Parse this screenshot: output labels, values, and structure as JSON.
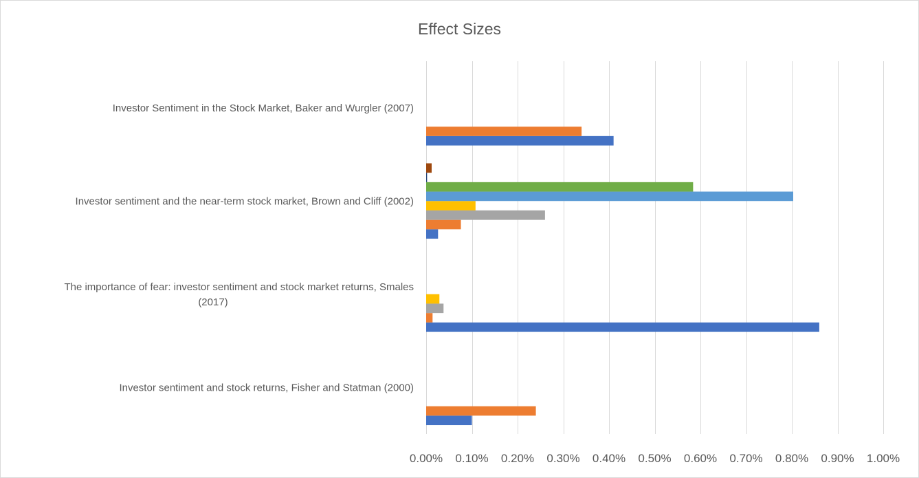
{
  "chart_data": {
    "type": "bar",
    "orientation": "horizontal",
    "title": "Effect Sizes",
    "xlabel": "",
    "ylabel": "",
    "xlim": [
      0,
      1.0
    ],
    "grid": true,
    "legend": "none",
    "x_ticks": [
      "0.00%",
      "0.10%",
      "0.20%",
      "0.30%",
      "0.40%",
      "0.50%",
      "0.60%",
      "0.70%",
      "0.80%",
      "0.90%",
      "1.00%"
    ],
    "x_tick_values": [
      0,
      0.1,
      0.2,
      0.3,
      0.4,
      0.5,
      0.6,
      0.7,
      0.8,
      0.9,
      1.0
    ],
    "categories": [
      {
        "label_lines": [
          "Investor Sentiment in the Stock Market, Baker and Wurgler (2007)"
        ],
        "bars": [
          {
            "value": 0.41,
            "color": "#4472c4"
          },
          {
            "value": 0.34,
            "color": "#ed7d31"
          }
        ]
      },
      {
        "label_lines": [
          "Investor sentiment and the near-term stock market, Brown and Cliff (2002)"
        ],
        "bars": [
          {
            "value": 0.026,
            "color": "#4472c4"
          },
          {
            "value": 0.076,
            "color": "#ed7d31"
          },
          {
            "value": 0.26,
            "color": "#a5a5a5"
          },
          {
            "value": 0.108,
            "color": "#ffc000"
          },
          {
            "value": 0.803,
            "color": "#5b9bd5"
          },
          {
            "value": 0.584,
            "color": "#70ad47"
          },
          {
            "value": 0.002,
            "color": "#264478"
          },
          {
            "value": 0.012,
            "color": "#9e480e"
          }
        ]
      },
      {
        "label_lines": [
          "The importance of fear: investor sentiment and stock market returns, Smales",
          "(2017)"
        ],
        "bars": [
          {
            "value": 0.86,
            "color": "#4472c4"
          },
          {
            "value": 0.014,
            "color": "#ed7d31"
          },
          {
            "value": 0.038,
            "color": "#a5a5a5"
          },
          {
            "value": 0.029,
            "color": "#ffc000"
          }
        ]
      },
      {
        "label_lines": [
          "Investor sentiment and stock returns, Fisher and Statman (2000)"
        ],
        "bars": [
          {
            "value": 0.1,
            "color": "#4472c4"
          },
          {
            "value": 0.24,
            "color": "#ed7d31"
          }
        ]
      }
    ]
  }
}
